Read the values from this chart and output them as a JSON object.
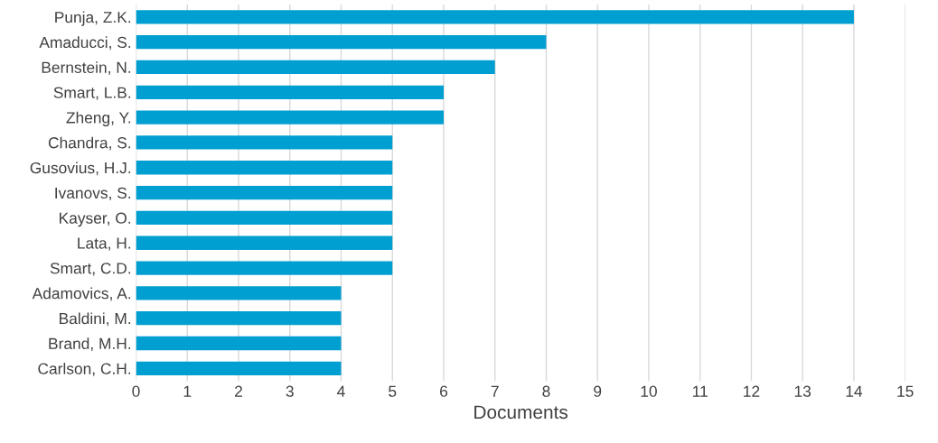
{
  "chart_data": {
    "type": "bar",
    "orientation": "horizontal",
    "categories": [
      "Punja, Z.K.",
      "Amaducci, S.",
      "Bernstein, N.",
      "Smart, L.B.",
      "Zheng, Y.",
      "Chandra, S.",
      "Gusovius, H.J.",
      "Ivanovs, S.",
      "Kayser, O.",
      "Lata, H.",
      "Smart, C.D.",
      "Adamovics, A.",
      "Baldini, M.",
      "Brand, M.H.",
      "Carlson, C.H."
    ],
    "values": [
      14,
      8,
      7,
      6,
      6,
      5,
      5,
      5,
      5,
      5,
      5,
      4,
      4,
      4,
      4
    ],
    "color": "#009fd1",
    "xlim": [
      0,
      15
    ],
    "xticks": [
      0,
      1,
      2,
      3,
      4,
      5,
      6,
      7,
      8,
      9,
      10,
      11,
      12,
      13,
      14,
      15
    ],
    "xlabel": "Documents",
    "grid": "x"
  }
}
